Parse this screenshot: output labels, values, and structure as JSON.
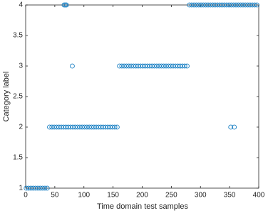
{
  "chart_data": {
    "type": "scatter",
    "xlabel": "Time domain test samples",
    "ylabel": "Category label",
    "color": "#0072bd",
    "xlim": [
      0,
      400
    ],
    "xticks": [
      0,
      50,
      100,
      150,
      200,
      250,
      300,
      350,
      400
    ],
    "ylim": [
      1,
      4
    ],
    "yticks": [
      1,
      1.5,
      2,
      2.5,
      3,
      3.5,
      4
    ],
    "x": [
      1,
      5,
      9,
      13,
      17,
      21,
      25,
      29,
      33,
      37,
      41,
      45,
      49,
      53,
      57,
      61,
      65,
      69,
      73,
      77,
      81,
      85,
      89,
      93,
      97,
      101,
      105,
      109,
      113,
      117,
      121,
      125,
      129,
      133,
      137,
      141,
      145,
      149,
      153,
      157,
      161,
      165,
      169,
      173,
      177,
      181,
      185,
      189,
      193,
      197,
      201,
      205,
      209,
      213,
      217,
      221,
      225,
      229,
      233,
      237,
      241,
      245,
      249,
      253,
      257,
      261,
      265,
      269,
      273,
      277,
      281,
      285,
      289,
      293,
      297,
      301,
      305,
      309,
      313,
      317,
      321,
      325,
      329,
      333,
      337,
      341,
      345,
      349,
      353,
      357,
      361,
      365,
      369,
      373,
      377,
      381,
      385,
      389,
      393,
      397,
      66,
      68,
      70,
      80,
      352,
      358
    ],
    "y": [
      1,
      1,
      1,
      1,
      1,
      1,
      1,
      1,
      1,
      1,
      2,
      2,
      2,
      2,
      2,
      2,
      2,
      2,
      2,
      2,
      2,
      2,
      2,
      2,
      2,
      2,
      2,
      2,
      2,
      2,
      2,
      2,
      2,
      2,
      2,
      2,
      2,
      2,
      2,
      2,
      3,
      3,
      3,
      3,
      3,
      3,
      3,
      3,
      3,
      3,
      3,
      3,
      3,
      3,
      3,
      3,
      3,
      3,
      3,
      3,
      3,
      3,
      3,
      3,
      3,
      3,
      3,
      3,
      3,
      3,
      4,
      4,
      4,
      4,
      4,
      4,
      4,
      4,
      4,
      4,
      4,
      4,
      4,
      4,
      4,
      4,
      4,
      4,
      4,
      4,
      4,
      4,
      4,
      4,
      4,
      4,
      4,
      4,
      4,
      4,
      4,
      4,
      4,
      3,
      2,
      2
    ]
  }
}
